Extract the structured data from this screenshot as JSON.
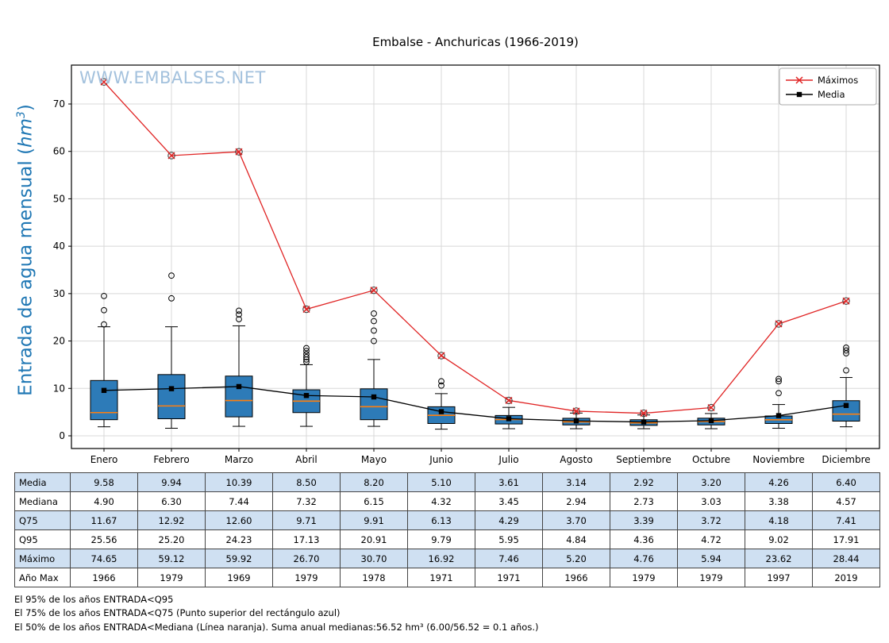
{
  "title": "Embalse - Anchuricas (1966-2019)",
  "watermark": "WWW.EMBALSES.NET",
  "ylabel": {
    "pre": "Entrada de agua mensual (",
    "italic": "hm",
    "sup": "3",
    "post": ")"
  },
  "legend": {
    "maximos": "Máximos",
    "media": "Media"
  },
  "chart_data": {
    "type": "boxplot",
    "title": "Embalse - Anchuricas (1966-2019)",
    "ylabel": "Entrada de agua mensual (hm³)",
    "categories": [
      "Enero",
      "Febrero",
      "Marzo",
      "Abril",
      "Mayo",
      "Junio",
      "Julio",
      "Agosto",
      "Septiembre",
      "Octubre",
      "Noviembre",
      "Diciembre"
    ],
    "y_ticks": [
      0,
      10,
      20,
      30,
      40,
      50,
      60,
      70
    ],
    "ylim": [
      -2.7,
      78.2
    ],
    "grid": true,
    "legend_position": "upper right",
    "colors": {
      "box_fill": "#2d7bb8",
      "median": "#ff7f0e",
      "maximos": "#e02424",
      "media": "#000000",
      "ylabel": "#1f77b4",
      "watermark": "#a3c1dd",
      "row_alt": "#cfe0f2"
    },
    "series": [
      {
        "name": "Máximos",
        "type": "line",
        "marker": "x",
        "color": "#e02424",
        "values": [
          74.65,
          59.12,
          59.92,
          26.7,
          30.7,
          16.92,
          7.46,
          5.2,
          4.76,
          5.94,
          23.62,
          28.44
        ]
      },
      {
        "name": "Media",
        "type": "line",
        "marker": "square",
        "color": "#000000",
        "values": [
          9.58,
          9.94,
          10.39,
          8.5,
          8.2,
          5.1,
          3.61,
          3.14,
          2.92,
          3.2,
          4.26,
          6.4
        ]
      }
    ],
    "boxes": [
      {
        "month": "Enero",
        "median": 4.9,
        "q25": 3.4,
        "q75": 11.67,
        "whisker_low": 1.9,
        "whisker_high": 23.0,
        "outliers": [
          23.5,
          26.5,
          29.5
        ]
      },
      {
        "month": "Febrero",
        "median": 6.3,
        "q25": 3.6,
        "q75": 12.92,
        "whisker_low": 1.6,
        "whisker_high": 23.0,
        "outliers": [
          29.0,
          33.8
        ]
      },
      {
        "month": "Marzo",
        "median": 7.44,
        "q25": 4.0,
        "q75": 12.6,
        "whisker_low": 2.0,
        "whisker_high": 23.2,
        "outliers": [
          24.6,
          25.6,
          26.4
        ]
      },
      {
        "month": "Abril",
        "median": 7.32,
        "q25": 4.9,
        "q75": 9.71,
        "whisker_low": 2.0,
        "whisker_high": 15.0,
        "outliers": [
          15.6,
          16.1,
          16.6,
          17.2,
          17.9,
          18.5
        ]
      },
      {
        "month": "Mayo",
        "median": 6.15,
        "q25": 3.4,
        "q75": 9.91,
        "whisker_low": 2.0,
        "whisker_high": 16.1,
        "outliers": [
          20.0,
          22.2,
          24.2,
          25.8
        ]
      },
      {
        "month": "Junio",
        "median": 4.32,
        "q25": 2.6,
        "q75": 6.13,
        "whisker_low": 1.4,
        "whisker_high": 8.9,
        "outliers": [
          10.6,
          11.5
        ]
      },
      {
        "month": "Julio",
        "median": 3.45,
        "q25": 2.5,
        "q75": 4.29,
        "whisker_low": 1.5,
        "whisker_high": 6.0,
        "outliers": []
      },
      {
        "month": "Agosto",
        "median": 2.94,
        "q25": 2.3,
        "q75": 3.7,
        "whisker_low": 1.5,
        "whisker_high": 4.8,
        "outliers": []
      },
      {
        "month": "Septiembre",
        "median": 2.73,
        "q25": 2.2,
        "q75": 3.39,
        "whisker_low": 1.5,
        "whisker_high": 4.4,
        "outliers": []
      },
      {
        "month": "Octubre",
        "median": 3.03,
        "q25": 2.3,
        "q75": 3.72,
        "whisker_low": 1.5,
        "whisker_high": 4.7,
        "outliers": []
      },
      {
        "month": "Noviembre",
        "median": 3.38,
        "q25": 2.6,
        "q75": 4.18,
        "whisker_low": 1.6,
        "whisker_high": 6.6,
        "outliers": [
          9.0,
          11.5,
          12.0
        ]
      },
      {
        "month": "Diciembre",
        "median": 4.57,
        "q25": 3.1,
        "q75": 7.41,
        "whisker_low": 1.9,
        "whisker_high": 12.3,
        "outliers": [
          13.8,
          17.4,
          18.0,
          18.6
        ]
      }
    ]
  },
  "table": {
    "row_labels": [
      "Media",
      "Mediana",
      "Q75",
      "Q95",
      "Máximo",
      "Año Max"
    ],
    "rows": [
      [
        "9.58",
        "9.94",
        "10.39",
        "8.50",
        "8.20",
        "5.10",
        "3.61",
        "3.14",
        "2.92",
        "3.20",
        "4.26",
        "6.40"
      ],
      [
        "4.90",
        "6.30",
        "7.44",
        "7.32",
        "6.15",
        "4.32",
        "3.45",
        "2.94",
        "2.73",
        "3.03",
        "3.38",
        "4.57"
      ],
      [
        "11.67",
        "12.92",
        "12.60",
        "9.71",
        "9.91",
        "6.13",
        "4.29",
        "3.70",
        "3.39",
        "3.72",
        "4.18",
        "7.41"
      ],
      [
        "25.56",
        "25.20",
        "24.23",
        "17.13",
        "20.91",
        "9.79",
        "5.95",
        "4.84",
        "4.36",
        "4.72",
        "9.02",
        "17.91"
      ],
      [
        "74.65",
        "59.12",
        "59.92",
        "26.70",
        "30.70",
        "16.92",
        "7.46",
        "5.20",
        "4.76",
        "5.94",
        "23.62",
        "28.44"
      ],
      [
        "1966",
        "1979",
        "1969",
        "1979",
        "1978",
        "1971",
        "1971",
        "1966",
        "1979",
        "1979",
        "1997",
        "2019"
      ]
    ]
  },
  "footer": {
    "lines": [
      "El 95% de los años ENTRADA<Q95",
      "El 75% de los años ENTRADA<Q75 (Punto superior del rectángulo azul)",
      "El 50% de los años ENTRADA<Mediana (Línea naranja). Suma anual medianas:56.52 hm³ (6.00/56.52 = 0.1 años.)"
    ]
  }
}
